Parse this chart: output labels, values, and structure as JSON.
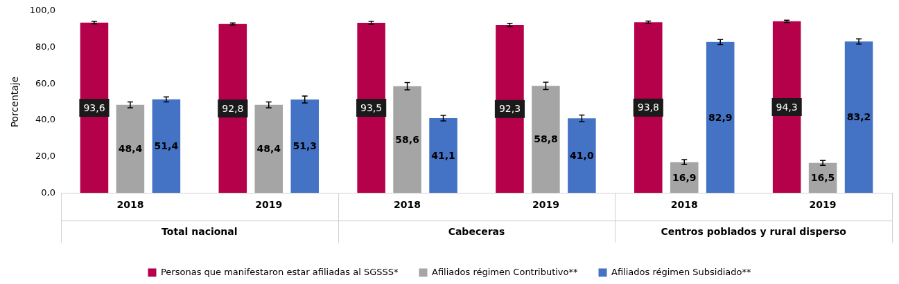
{
  "chart_data": {
    "type": "bar",
    "ylabel": "Porcentaje",
    "categories": [
      "2018",
      "2019",
      "2018",
      "2019",
      "2018",
      "2019"
    ],
    "annotations": [
      "Total nacional",
      "Cabeceras",
      "Centros poblados y rural disperso"
    ],
    "series": [
      {
        "name": "Personas que manifestaron estar afiliadas al SGSSS*",
        "color": "#b5004a",
        "values": [
          93.6,
          92.8,
          93.5,
          92.3,
          93.8,
          94.3
        ],
        "errors": [
          0.7,
          0.6,
          0.8,
          0.9,
          0.6,
          0.6
        ],
        "value_labels": [
          "93,6",
          "92,8",
          "93,5",
          "92,3",
          "93,8",
          "94,3"
        ]
      },
      {
        "name": "Afiliados régimen Contributivo**",
        "color": "#a5a5a5",
        "values": [
          48.4,
          48.4,
          58.6,
          58.8,
          16.9,
          16.5
        ],
        "errors": [
          1.6,
          1.6,
          2.0,
          2.0,
          1.4,
          1.3
        ],
        "value_labels": [
          "48,4",
          "48,4",
          "58,6",
          "58,8",
          "16,9",
          "16,5"
        ]
      },
      {
        "name": "Afiliados régimen Subsidiado**",
        "color": "#4472c4",
        "values": [
          51.4,
          51.3,
          41.1,
          41.0,
          82.9,
          83.2
        ],
        "errors": [
          1.4,
          1.9,
          1.5,
          1.8,
          1.4,
          1.4
        ],
        "value_labels": [
          "51,4",
          "51,3",
          "41,1",
          "41,0",
          "82,9",
          "83,2"
        ]
      }
    ],
    "ylim": [
      0,
      100
    ],
    "yticks": [
      {
        "value": 0,
        "label": "0,0"
      },
      {
        "value": 20,
        "label": "20,0"
      },
      {
        "value": 40,
        "label": "40,0"
      },
      {
        "value": 60,
        "label": "60,0"
      },
      {
        "value": 80,
        "label": "80,0"
      },
      {
        "value": 100,
        "label": "100,0"
      }
    ],
    "legend": "bottom"
  }
}
